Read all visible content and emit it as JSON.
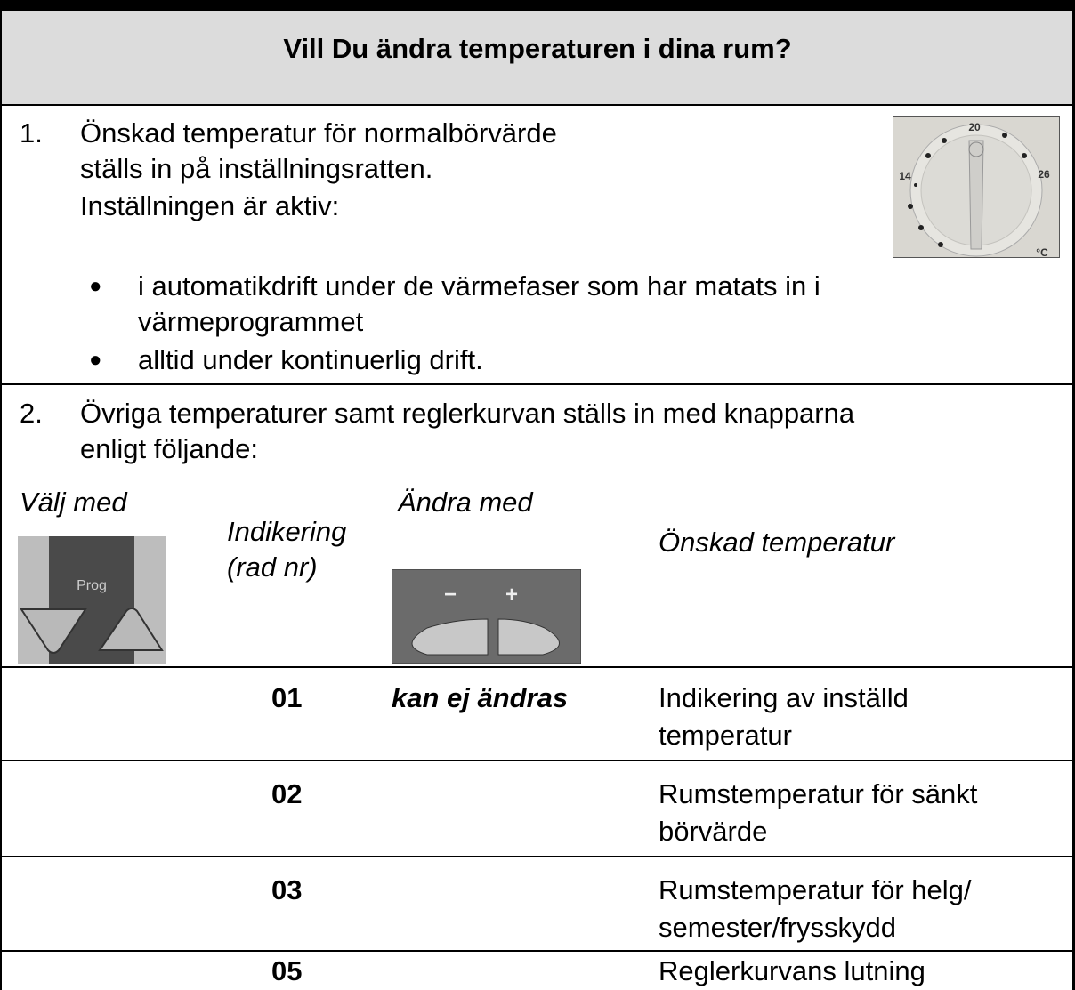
{
  "header": {
    "title": "Vill Du ändra temperaturen i dina rum?"
  },
  "step1": {
    "number": "1.",
    "lines": [
      "Önskad temperatur för normalbörvärde",
      "ställs in på inställningsratten.",
      "Inställningen är aktiv:"
    ],
    "bullets": [
      [
        "i automatikdrift under de värmefaser som har matats in i",
        "värmeprogrammet"
      ],
      [
        "alltid under kontinuerlig drift."
      ]
    ],
    "dial_labels": [
      "20",
      "14",
      "26",
      "°C"
    ]
  },
  "step2": {
    "number": "2.",
    "lines": [
      "Övriga temperaturer samt reglerkurvan ställs in med knapparna",
      "enligt följande:"
    ],
    "columns": {
      "select": "Välj med",
      "indication": [
        "Indikering",
        "(rad nr)"
      ],
      "change": "Ändra med",
      "desired": "Önskad temperatur"
    },
    "prog_label": "Prog",
    "buttons": [
      "−",
      "+"
    ]
  },
  "table": {
    "rows": [
      [
        "01",
        "kan ej ändras",
        [
          "Indikering av inställd",
          "temperatur"
        ]
      ],
      [
        "02",
        null,
        [
          "Rumstemperatur för sänkt",
          "börvärde"
        ]
      ],
      [
        "03",
        null,
        [
          "Rumstemperatur för helg/",
          "semester/frysskydd"
        ]
      ],
      [
        "05",
        null,
        [
          "Reglerkurvans lutning"
        ]
      ]
    ]
  }
}
